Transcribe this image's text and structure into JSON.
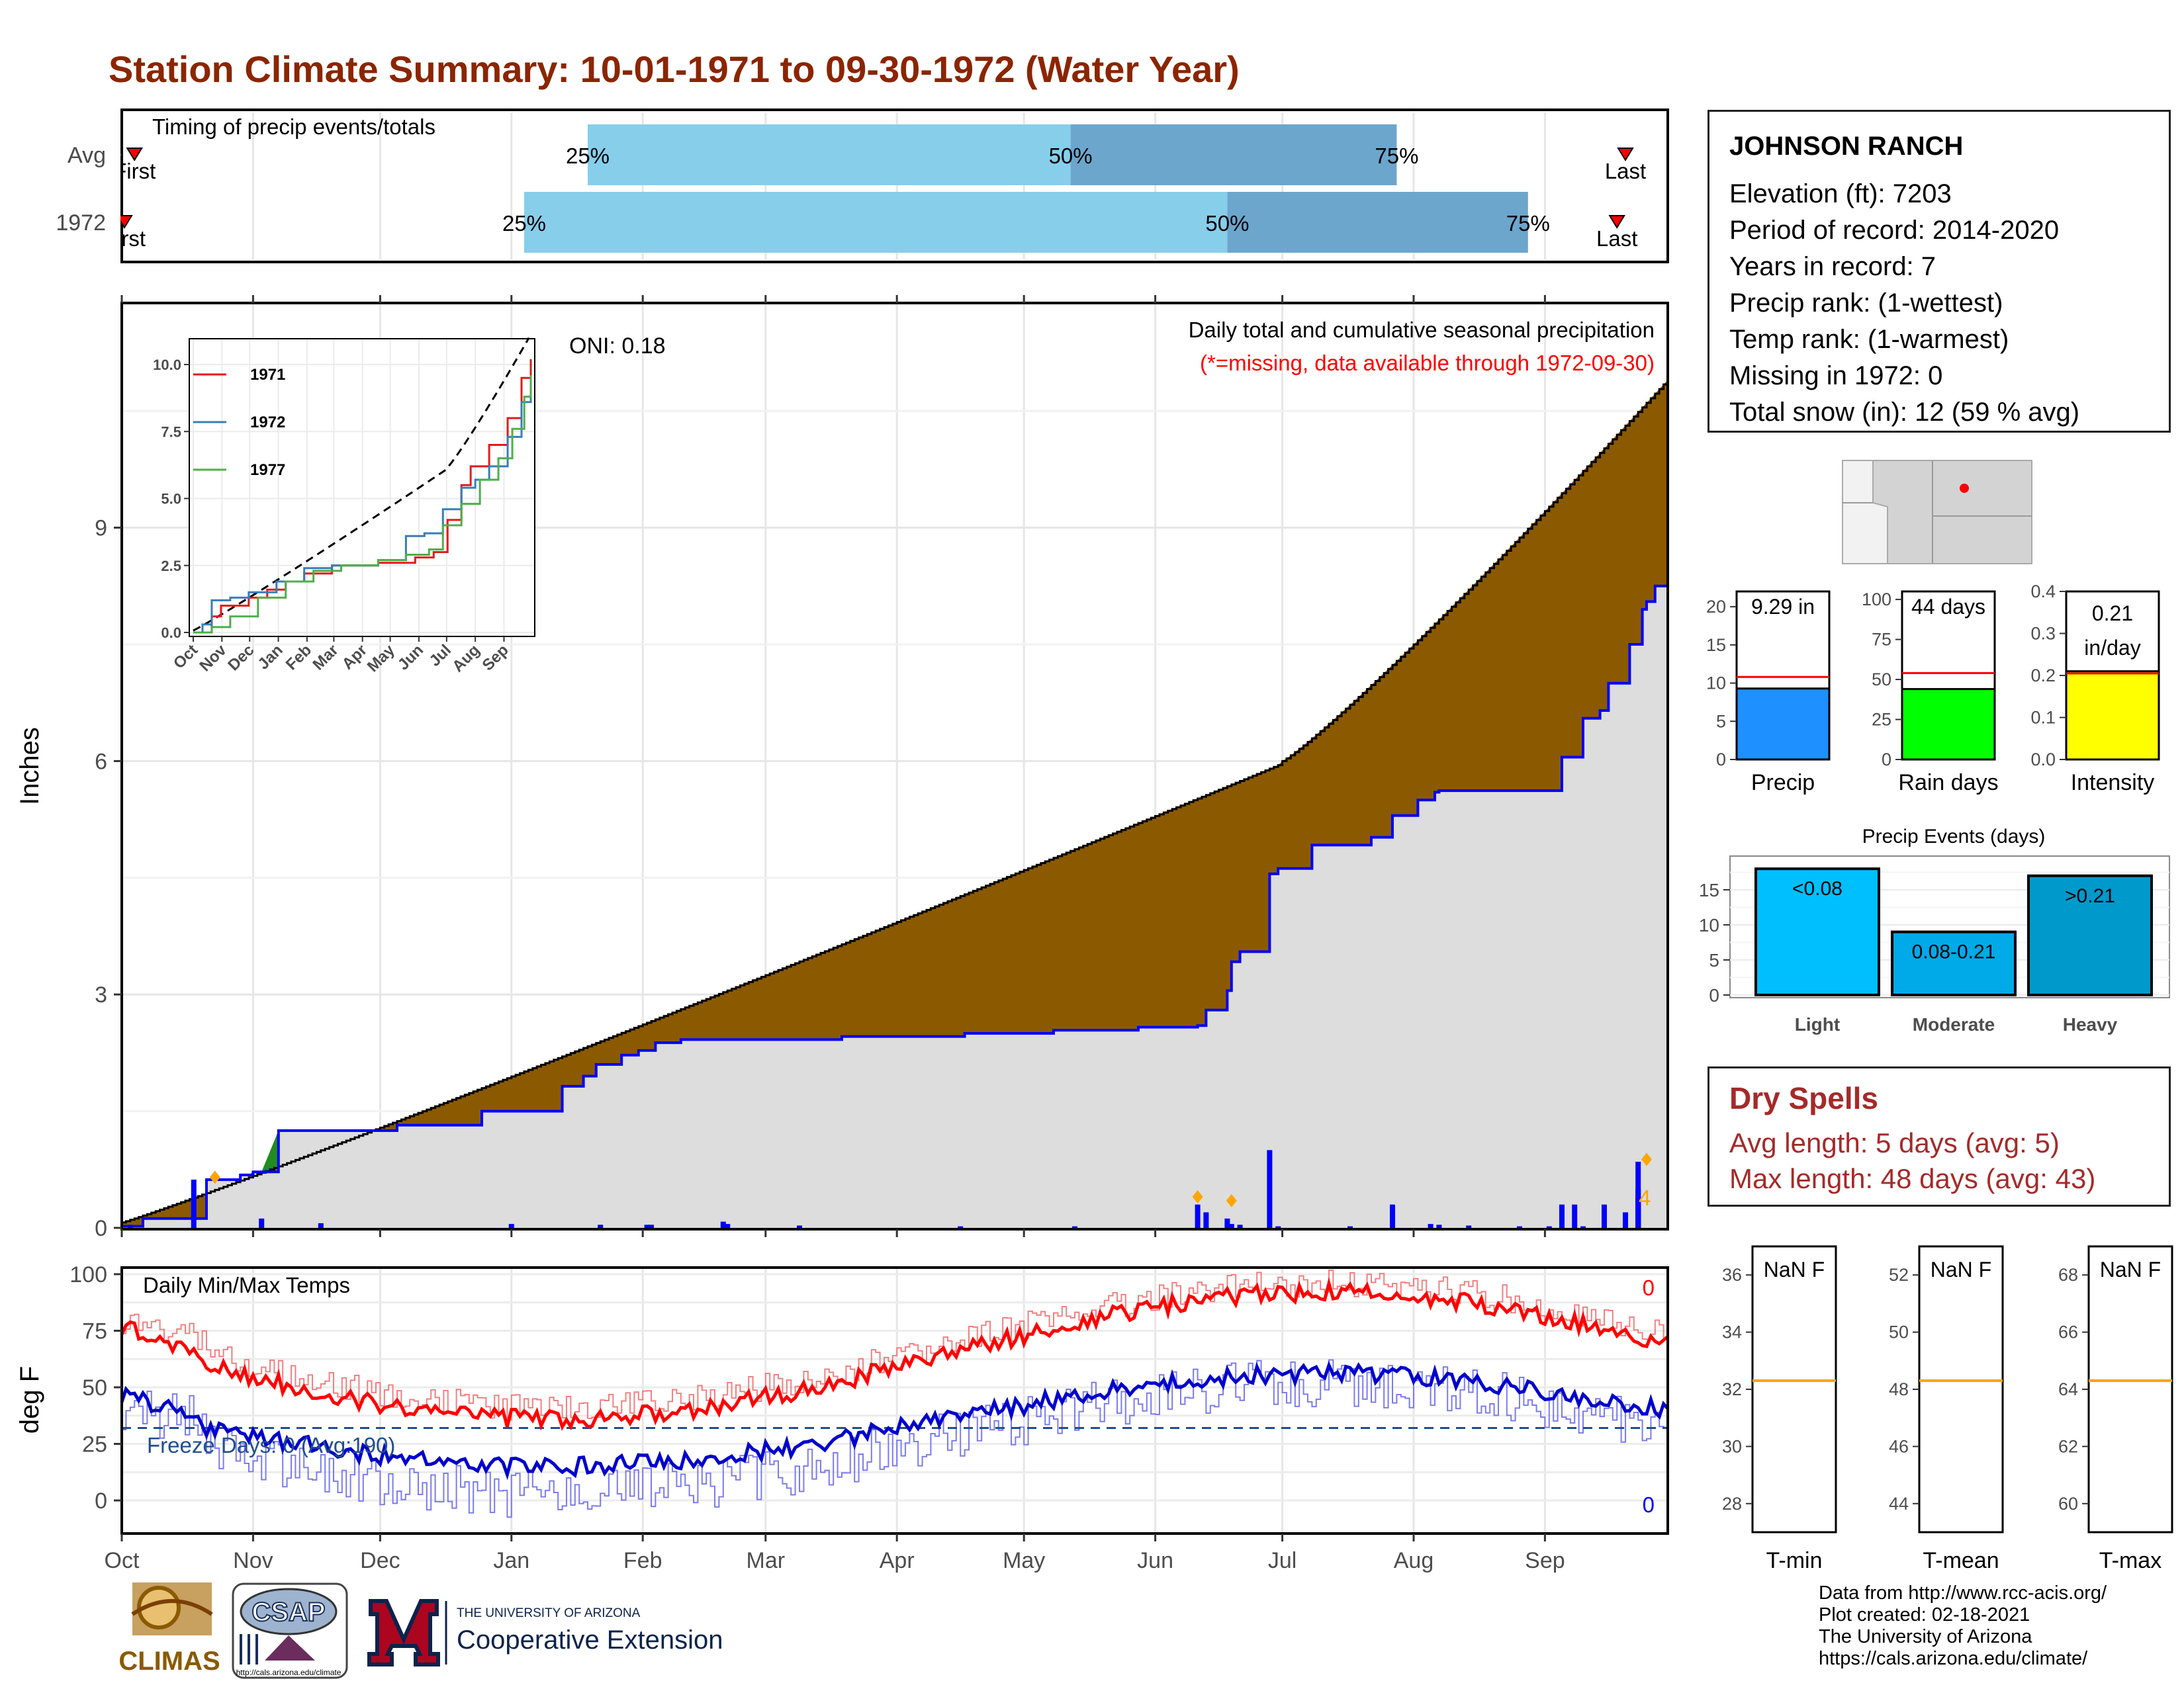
{
  "title": "Station Climate Summary: 10-01-1971 to 09-30-1972 (Water Year)",
  "station": {
    "name": "JOHNSON RANCH",
    "rows": [
      "Elevation (ft): 7203",
      "Period of record: 2014-2020",
      "Years in record: 7",
      "Precip rank:  (1-wettest)",
      "Temp rank:  (1-warmest)",
      "Missing in 1972: 0",
      "Total snow (in): 12 (59 % avg)"
    ]
  },
  "months": [
    "Oct",
    "Nov",
    "Dec",
    "Jan",
    "Feb",
    "Mar",
    "Apr",
    "May",
    "Jun",
    "Jul",
    "Aug",
    "Sep"
  ],
  "timing_panel": {
    "label": "Timing of precip events/totals",
    "rows": [
      {
        "name": "Avg",
        "first_label": "First",
        "last_label": "Last",
        "p25": "25%",
        "p50": "50%",
        "p75": "75%",
        "first_day": 3,
        "q25_day": 110,
        "q50_day": 224,
        "q75_day": 301,
        "last_day": 355
      },
      {
        "name": "1972",
        "first_label": "First",
        "last_label": "Last",
        "p25": "25%",
        "p50": "50%",
        "p75": "75%",
        "first_day": 0,
        "q25_day": 95,
        "q50_day": 261,
        "q75_day": 332,
        "last_day": 353
      }
    ],
    "colors": {
      "light": "#87CEEB",
      "dark": "#6CA6CD"
    }
  },
  "precip_panel": {
    "ylabel": "Inches",
    "oni": "ONI: 0.18",
    "subtitle": "Daily total and cumulative seasonal precipitation",
    "missing_note": "(*=missing, data available through 1972-09-30)",
    "right_label": "4",
    "yticks": [
      "0",
      "3",
      "6",
      "9"
    ],
    "colors": {
      "avg_fill": "#8B5A00",
      "above_fill": "#228B22",
      "obs_fill": "#DDDDDD",
      "obs_line": "#0000FF",
      "avg_line": "#000000",
      "marker": "#FFA500"
    }
  },
  "inset": {
    "legend": [
      "1971",
      "1972",
      "1977"
    ],
    "legend_colors": [
      "#E31A1C",
      "#377EB8",
      "#4DAF4A"
    ],
    "yticks": [
      "0.0",
      "2.5",
      "5.0",
      "7.5",
      "10.0"
    ]
  },
  "bars_small": [
    {
      "label": "Precip",
      "value_text": "9.29 in",
      "yticks": [
        "0",
        "5",
        "10",
        "15",
        "20"
      ],
      "value": 9.29,
      "ymax": 22,
      "avg": 10.8,
      "color": "#1E90FF"
    },
    {
      "label": "Rain days",
      "value_text": "44 days",
      "yticks": [
        "0",
        "25",
        "50",
        "75",
        "100"
      ],
      "value": 44,
      "ymax": 105,
      "avg": 54,
      "color": "#00FF00"
    },
    {
      "label": "Intensity",
      "value_text": "0.21 in/day",
      "yticks": [
        "0.0",
        "0.1",
        "0.2",
        "0.3",
        "0.4"
      ],
      "value": 0.21,
      "ymax": 0.4,
      "avg": 0.205,
      "color": "#FFFF00"
    }
  ],
  "events_panel": {
    "title": "Precip Events (days)",
    "categories": [
      "Light",
      "Moderate",
      "Heavy"
    ],
    "bar_labels": [
      "<0.08",
      "0.08-0.21",
      ">0.21"
    ],
    "values": [
      18,
      9,
      17
    ],
    "yticks": [
      "0",
      "5",
      "10",
      "15"
    ],
    "colors": [
      "#00BFFF",
      "#00A9E8",
      "#0099CC"
    ]
  },
  "dry_spells": {
    "title": "Dry Spells",
    "avg_length": "Avg length: 5 days (avg: 5)",
    "max_length": "Max length: 48 days (avg: 43)"
  },
  "temp_panel": {
    "ylabel": "deg F",
    "label": "Daily Min/Max Temps",
    "freeze_label": "Freeze Days: 0 (Avg:190)",
    "max_count": "0",
    "min_count": "0",
    "yticks": [
      "0",
      "25",
      "50",
      "75",
      "100"
    ]
  },
  "temp_gauges": [
    {
      "label": "T-min",
      "value_text": "NaN F",
      "yticks": [
        "28",
        "30",
        "32",
        "34",
        "36"
      ],
      "ymin": 27,
      "ymax": 37,
      "avg": 32.3
    },
    {
      "label": "T-mean",
      "value_text": "NaN F",
      "yticks": [
        "44",
        "46",
        "48",
        "50",
        "52"
      ],
      "ymin": 43,
      "ymax": 53,
      "avg": 48.3
    },
    {
      "label": "T-max",
      "value_text": "NaN F",
      "yticks": [
        "60",
        "62",
        "64",
        "66",
        "68"
      ],
      "ymin": 59,
      "ymax": 69,
      "avg": 64.3
    }
  ],
  "credits": [
    "Data from http://www.rcc-acis.org/",
    "Plot created: 02-18-2021",
    "The University of Arizona",
    "https://cals.arizona.edu/climate/"
  ],
  "logos": {
    "climas": "CLIMAS",
    "csap": "CSAP",
    "csap_url": "http://cals.arizona.edu/climate",
    "ua_small": "THE UNIVERSITY OF ARIZONA",
    "ua_big": "Cooperative Extension"
  }
}
